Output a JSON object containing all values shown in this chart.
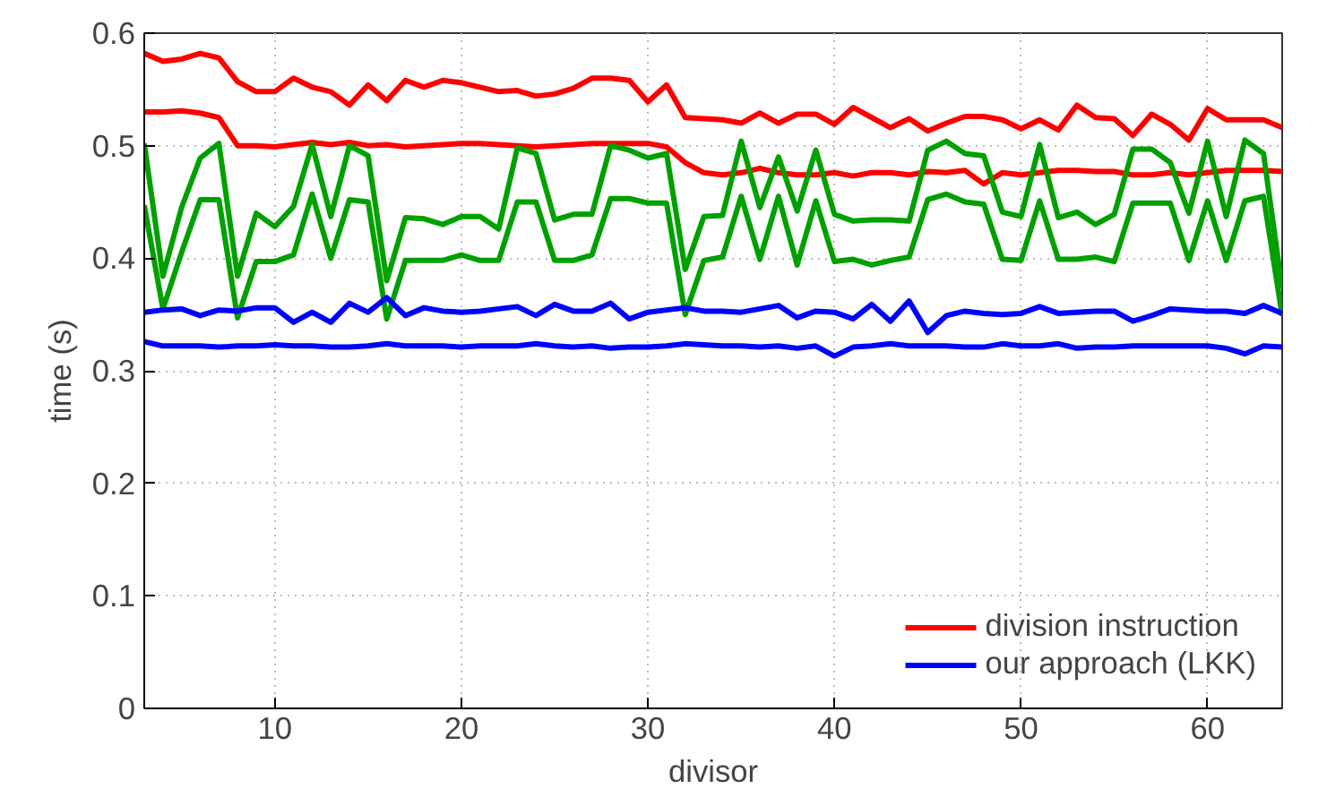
{
  "chart_data": {
    "type": "line",
    "xlabel": "divisor",
    "ylabel": "time (s)",
    "x": [
      3,
      4,
      5,
      6,
      7,
      8,
      9,
      10,
      11,
      12,
      13,
      14,
      15,
      16,
      17,
      18,
      19,
      20,
      21,
      22,
      23,
      24,
      25,
      26,
      27,
      28,
      29,
      30,
      31,
      32,
      33,
      34,
      35,
      36,
      37,
      38,
      39,
      40,
      41,
      42,
      43,
      44,
      45,
      46,
      47,
      48,
      49,
      50,
      51,
      52,
      53,
      54,
      55,
      56,
      57,
      58,
      59,
      60,
      61,
      62,
      63,
      64
    ],
    "series": [
      {
        "name": "division instruction",
        "color": "#ff0000",
        "values": [
          0.582,
          0.575,
          0.577,
          0.582,
          0.578,
          0.557,
          0.548,
          0.548,
          0.56,
          0.552,
          0.548,
          0.536,
          0.554,
          0.54,
          0.558,
          0.552,
          0.558,
          0.556,
          0.552,
          0.548,
          0.549,
          0.544,
          0.546,
          0.551,
          0.56,
          0.56,
          0.558,
          0.539,
          0.554,
          0.525,
          0.524,
          0.523,
          0.52,
          0.529,
          0.52,
          0.528,
          0.528,
          0.519,
          0.534,
          0.525,
          0.516,
          0.524,
          0.513,
          0.52,
          0.526,
          0.526,
          0.523,
          0.515,
          0.523,
          0.514,
          0.536,
          0.525,
          0.524,
          0.509,
          0.528,
          0.519,
          0.505,
          0.533,
          0.523,
          0.523,
          0.523,
          0.516
        ]
      },
      {
        "color": "#ff0000",
        "values": [
          0.53,
          0.53,
          0.531,
          0.529,
          0.525,
          0.5,
          0.5,
          0.499,
          0.501,
          0.503,
          0.501,
          0.503,
          0.5,
          0.501,
          0.499,
          0.5,
          0.501,
          0.502,
          0.502,
          0.501,
          0.5,
          0.499,
          0.5,
          0.501,
          0.502,
          0.502,
          0.502,
          0.502,
          0.499,
          0.485,
          0.476,
          0.474,
          0.476,
          0.48,
          0.476,
          0.474,
          0.474,
          0.476,
          0.473,
          0.476,
          0.476,
          0.474,
          0.477,
          0.476,
          0.478,
          0.466,
          0.476,
          0.474,
          0.476,
          0.478,
          0.478,
          0.477,
          0.477,
          0.474,
          0.474,
          0.476,
          0.474,
          0.476,
          0.478,
          0.478,
          0.478,
          0.477
        ]
      },
      {
        "color": "#00a000",
        "values": [
          0.502,
          0.384,
          0.445,
          0.489,
          0.502,
          0.384,
          0.44,
          0.428,
          0.446,
          0.501,
          0.437,
          0.5,
          0.491,
          0.38,
          0.436,
          0.435,
          0.43,
          0.437,
          0.437,
          0.426,
          0.498,
          0.493,
          0.434,
          0.439,
          0.439,
          0.5,
          0.496,
          0.489,
          0.493,
          0.39,
          0.437,
          0.438,
          0.504,
          0.445,
          0.49,
          0.442,
          0.496,
          0.439,
          0.433,
          0.434,
          0.434,
          0.433,
          0.496,
          0.504,
          0.493,
          0.491,
          0.441,
          0.437,
          0.501,
          0.436,
          0.441,
          0.43,
          0.439,
          0.497,
          0.497,
          0.485,
          0.44,
          0.504,
          0.437,
          0.505,
          0.493,
          0.373
        ]
      },
      {
        "color": "#00a000",
        "values": [
          0.447,
          0.355,
          0.405,
          0.452,
          0.452,
          0.347,
          0.397,
          0.397,
          0.403,
          0.457,
          0.4,
          0.452,
          0.45,
          0.346,
          0.398,
          0.398,
          0.398,
          0.403,
          0.398,
          0.398,
          0.45,
          0.45,
          0.398,
          0.398,
          0.403,
          0.453,
          0.453,
          0.449,
          0.449,
          0.35,
          0.398,
          0.401,
          0.455,
          0.399,
          0.455,
          0.394,
          0.451,
          0.397,
          0.399,
          0.394,
          0.398,
          0.401,
          0.452,
          0.457,
          0.45,
          0.448,
          0.399,
          0.398,
          0.451,
          0.399,
          0.399,
          0.401,
          0.397,
          0.449,
          0.449,
          0.449,
          0.398,
          0.451,
          0.398,
          0.451,
          0.455,
          0.349
        ]
      },
      {
        "name": "our approach (LKK)",
        "color": "#0000ff",
        "values": [
          0.352,
          0.354,
          0.355,
          0.349,
          0.354,
          0.353,
          0.356,
          0.356,
          0.343,
          0.352,
          0.343,
          0.36,
          0.352,
          0.365,
          0.349,
          0.356,
          0.353,
          0.352,
          0.353,
          0.355,
          0.357,
          0.349,
          0.359,
          0.353,
          0.353,
          0.36,
          0.346,
          0.352,
          0.354,
          0.356,
          0.353,
          0.353,
          0.352,
          0.355,
          0.358,
          0.347,
          0.353,
          0.352,
          0.346,
          0.359,
          0.344,
          0.362,
          0.334,
          0.349,
          0.353,
          0.351,
          0.35,
          0.351,
          0.357,
          0.351,
          0.352,
          0.353,
          0.353,
          0.344,
          0.349,
          0.355,
          0.354,
          0.353,
          0.353,
          0.351,
          0.358,
          0.351
        ]
      },
      {
        "color": "#0000ff",
        "values": [
          0.326,
          0.322,
          0.322,
          0.322,
          0.321,
          0.322,
          0.322,
          0.323,
          0.322,
          0.322,
          0.321,
          0.321,
          0.322,
          0.324,
          0.322,
          0.322,
          0.322,
          0.321,
          0.322,
          0.322,
          0.322,
          0.324,
          0.322,
          0.321,
          0.322,
          0.32,
          0.321,
          0.321,
          0.322,
          0.324,
          0.323,
          0.322,
          0.322,
          0.321,
          0.322,
          0.32,
          0.322,
          0.313,
          0.321,
          0.322,
          0.324,
          0.322,
          0.322,
          0.322,
          0.321,
          0.321,
          0.324,
          0.322,
          0.322,
          0.324,
          0.32,
          0.321,
          0.321,
          0.322,
          0.322,
          0.322,
          0.322,
          0.322,
          0.32,
          0.315,
          0.322,
          0.321
        ]
      }
    ],
    "xlim": [
      3,
      64
    ],
    "ylim": [
      0,
      0.6
    ],
    "xticks": [
      10,
      20,
      30,
      40,
      50,
      60
    ],
    "yticks": [
      0,
      0.1,
      0.2,
      0.3,
      0.4,
      0.5,
      0.6
    ],
    "grid": true,
    "legend": "bottom right",
    "marker": "none",
    "line_style": "solid"
  }
}
